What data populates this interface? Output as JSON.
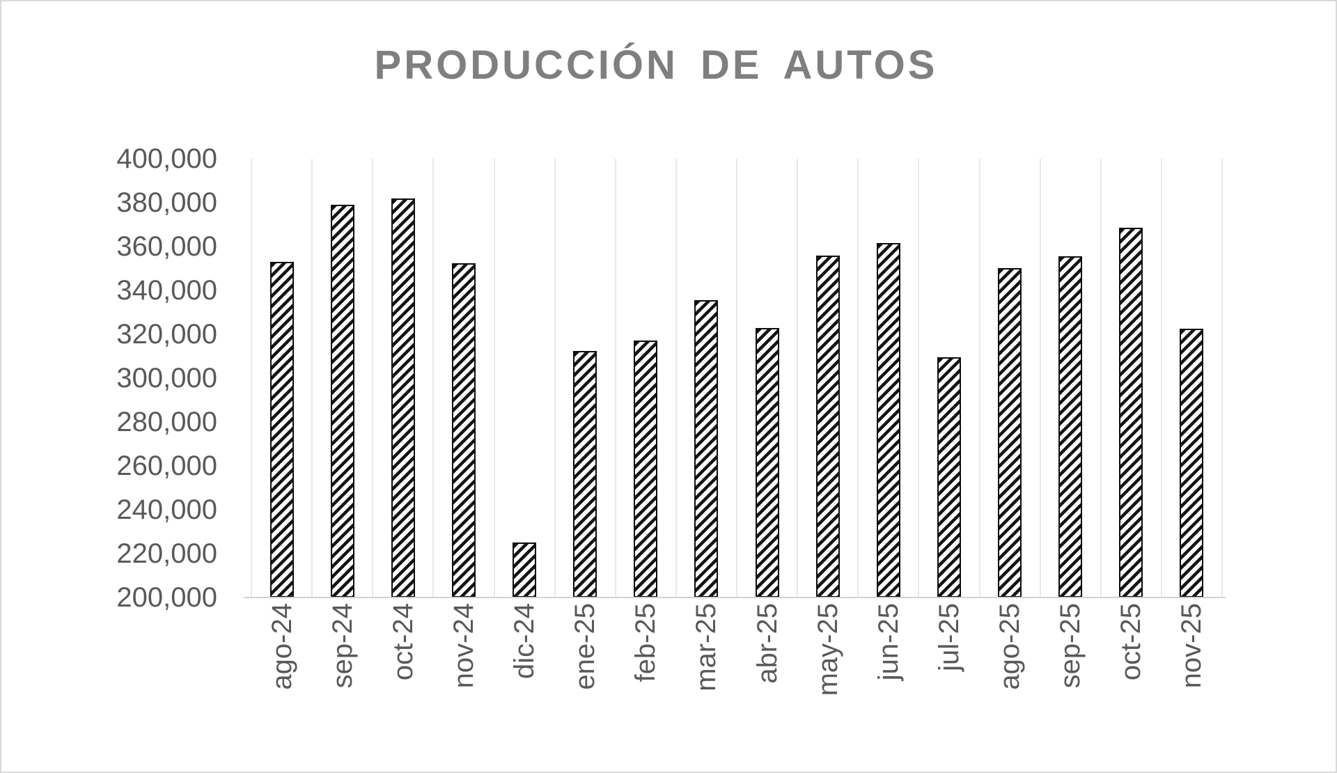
{
  "title": "PRODUCCIÓN DE AUTOS",
  "chart_data": {
    "type": "bar",
    "title": "PRODUCCIÓN DE AUTOS",
    "xlabel": "",
    "ylabel": "",
    "categories": [
      "ago-24",
      "sep-24",
      "oct-24",
      "nov-24",
      "dic-24",
      "ene-25",
      "feb-25",
      "mar-25",
      "abr-25",
      "may-25",
      "jun-25",
      "jul-25",
      "ago-25",
      "sep-25",
      "oct-25",
      "nov-25"
    ],
    "values": [
      353000,
      379000,
      382000,
      352500,
      225000,
      312500,
      317000,
      335500,
      323000,
      356000,
      361500,
      309500,
      350000,
      355500,
      368500,
      322500
    ],
    "ylim": [
      200000,
      400000
    ],
    "ytick_step": 20000,
    "ytick_labels": [
      "400,000",
      "380,000",
      "360,000",
      "340,000",
      "320,000",
      "300,000",
      "280,000",
      "260,000",
      "240,000",
      "220,000",
      "200,000"
    ],
    "legend": "none",
    "grid": "vertical-category-gridlines",
    "bar_style": {
      "fill": "#ffffff",
      "hatch": "diagonal-up",
      "stroke": "#0d0d0d"
    }
  },
  "colors": {
    "title_text": "#7f7f7f",
    "axis_text": "#595959",
    "gridline": "#e8e8e8",
    "axis_line": "#d2d2d2",
    "bar_stroke": "#0d0d0d",
    "frame_border": "#d9d9d9",
    "background": "#ffffff"
  }
}
